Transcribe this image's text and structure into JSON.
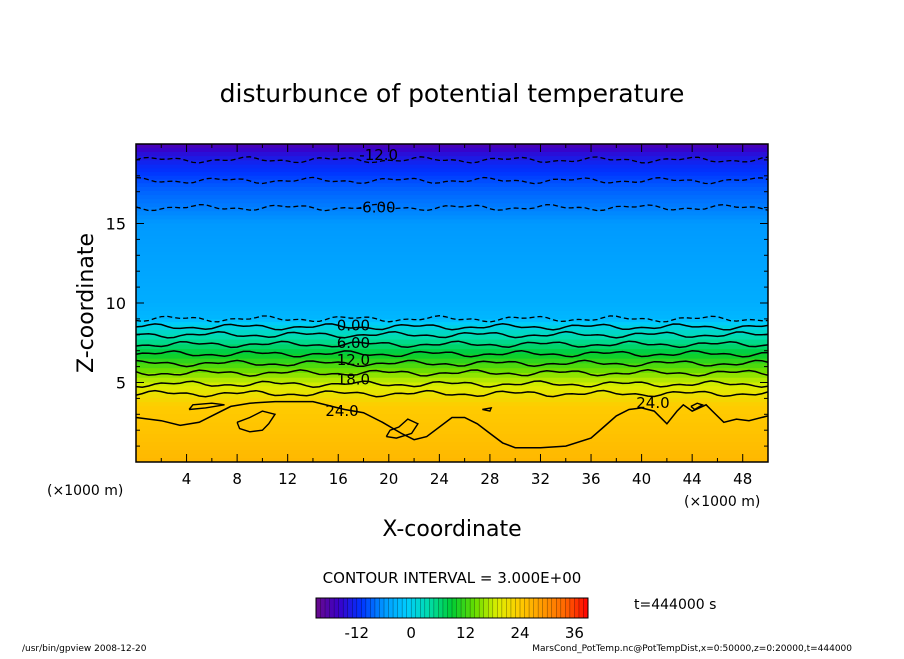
{
  "chart_data": {
    "type": "contour",
    "title": "disturbunce of potential temperature",
    "xlabel": "X-coordinate",
    "ylabel": "Z-coordinate",
    "x_unit_left": "(×1000 m)",
    "x_unit_right": "(×1000 m)",
    "xlim": [
      0,
      50
    ],
    "ylim": [
      0,
      20
    ],
    "x_ticks": [
      4,
      8,
      12,
      16,
      20,
      24,
      28,
      32,
      36,
      40,
      44,
      48
    ],
    "y_ticks": [
      5,
      10,
      15
    ],
    "contour_interval_text": "CONTOUR INTERVAL = 3.000E+00",
    "time_text": "t=444000 s",
    "colorbar": {
      "range": [
        -21,
        39
      ],
      "ticks": [
        -12,
        0,
        12,
        24,
        36
      ],
      "colors": [
        "#6a0a8a",
        "#3a00c8",
        "#0033ff",
        "#0099ff",
        "#00ccff",
        "#00ddaa",
        "#00cc33",
        "#66dd00",
        "#ddee00",
        "#ffcc00",
        "#ff9900",
        "#ff6600",
        "#ff0000"
      ]
    },
    "contour_labels": [
      {
        "text": "-12.0",
        "x": 19.2,
        "z": 19.3
      },
      {
        "text": "-6.00",
        "x": 19.0,
        "z": 16.0
      },
      {
        "text": "0.00",
        "x": 17.2,
        "z": 8.6
      },
      {
        "text": "6.00",
        "x": 17.2,
        "z": 7.5
      },
      {
        "text": "12.0",
        "x": 17.2,
        "z": 6.4
      },
      {
        "text": "18.0",
        "x": 17.2,
        "z": 5.2
      },
      {
        "text": "24.0",
        "x": 16.3,
        "z": 3.2
      },
      {
        "text": "24.0",
        "x": 40.9,
        "z": 3.7
      }
    ],
    "field_levels": [
      {
        "z": 20.0,
        "value": -18
      },
      {
        "z": 19.5,
        "value": -15
      },
      {
        "z": 18.7,
        "value": -12
      },
      {
        "z": 17.3,
        "value": -9
      },
      {
        "z": 15.0,
        "value": -6
      },
      {
        "z": 12.5,
        "value": -5
      },
      {
        "z": 10.0,
        "value": -4
      },
      {
        "z": 9.0,
        "value": -3
      },
      {
        "z": 8.6,
        "value": 0
      },
      {
        "z": 8.0,
        "value": 3
      },
      {
        "z": 7.4,
        "value": 6
      },
      {
        "z": 6.8,
        "value": 9
      },
      {
        "z": 6.2,
        "value": 12
      },
      {
        "z": 5.6,
        "value": 15
      },
      {
        "z": 5.0,
        "value": 18
      },
      {
        "z": 4.3,
        "value": 21
      },
      {
        "z": 3.5,
        "value": 24
      },
      {
        "z": 0.0,
        "value": 26
      }
    ],
    "contours": [
      {
        "value": -12,
        "dashed": true,
        "z": 19.0
      },
      {
        "value": -9,
        "dashed": true,
        "z": 17.7
      },
      {
        "value": -6,
        "dashed": true,
        "z": 16.0
      },
      {
        "value": -3,
        "dashed": true,
        "z": 9.0
      },
      {
        "value": 0,
        "dashed": false,
        "z": 8.5
      },
      {
        "value": 3,
        "dashed": false,
        "z": 8.0
      },
      {
        "value": 6,
        "dashed": false,
        "z": 7.4
      },
      {
        "value": 9,
        "dashed": false,
        "z": 6.8
      },
      {
        "value": 12,
        "dashed": false,
        "z": 6.2
      },
      {
        "value": 15,
        "dashed": false,
        "z": 5.6
      },
      {
        "value": 18,
        "dashed": false,
        "z": 4.9
      },
      {
        "value": 21,
        "dashed": false,
        "z": 4.3
      }
    ],
    "contour_24_boundary": [
      [
        0,
        2.8
      ],
      [
        2,
        2.6
      ],
      [
        3.5,
        2.3
      ],
      [
        5,
        2.5
      ],
      [
        6,
        2.9
      ],
      [
        7.5,
        3.5
      ],
      [
        9,
        3.7
      ],
      [
        11,
        3.8
      ],
      [
        14,
        3.8
      ],
      [
        15.5,
        3.5
      ],
      [
        16.5,
        3.3
      ],
      [
        18,
        3.1
      ],
      [
        19.5,
        2.5
      ],
      [
        21,
        1.8
      ],
      [
        22,
        1.4
      ],
      [
        23,
        1.6
      ],
      [
        25,
        2.8
      ],
      [
        26,
        2.8
      ],
      [
        27,
        2.4
      ],
      [
        28,
        1.8
      ],
      [
        29,
        1.2
      ],
      [
        30,
        0.9
      ],
      [
        32,
        0.9
      ],
      [
        34,
        1.0
      ],
      [
        36,
        1.5
      ],
      [
        37,
        2.2
      ],
      [
        38,
        2.9
      ],
      [
        39,
        3.3
      ],
      [
        40,
        3.4
      ],
      [
        41,
        3.2
      ],
      [
        42,
        2.4
      ],
      [
        42.8,
        3.2
      ],
      [
        43.3,
        3.6
      ],
      [
        44,
        3.2
      ],
      [
        45.1,
        3.6
      ],
      [
        45.6,
        3.2
      ],
      [
        46.5,
        2.5
      ],
      [
        47.5,
        2.7
      ],
      [
        48.5,
        2.6
      ],
      [
        50,
        2.9
      ]
    ],
    "small_24_contours": [
      [
        [
          4.2,
          3.3
        ],
        [
          5.5,
          3.4
        ],
        [
          7,
          3.6
        ],
        [
          6,
          3.7
        ],
        [
          4.5,
          3.6
        ],
        [
          4.2,
          3.3
        ]
      ],
      [
        [
          8,
          2.5
        ],
        [
          9,
          2.8
        ],
        [
          10,
          3.2
        ],
        [
          11,
          3.0
        ],
        [
          10.5,
          2.4
        ],
        [
          10,
          2.0
        ],
        [
          9,
          1.9
        ],
        [
          8.2,
          2.1
        ],
        [
          8,
          2.5
        ]
      ],
      [
        [
          19.8,
          1.6
        ],
        [
          20.6,
          1.5
        ],
        [
          21.8,
          1.8
        ],
        [
          22.3,
          2.4
        ],
        [
          21.5,
          2.7
        ],
        [
          20.8,
          2.2
        ],
        [
          20.1,
          2.0
        ],
        [
          19.8,
          1.6
        ]
      ],
      [
        [
          27.4,
          3.3
        ],
        [
          28.0,
          3.2
        ],
        [
          28.1,
          3.4
        ],
        [
          27.4,
          3.3
        ]
      ],
      [
        [
          43.9,
          3.5
        ],
        [
          44.4,
          3.7
        ],
        [
          44.8,
          3.6
        ],
        [
          44.2,
          3.3
        ],
        [
          43.9,
          3.5
        ]
      ]
    ],
    "footer_left": "/usr/bin/gpview   2008-12-20",
    "footer_right": "MarsCond_PotTemp.nc@PotTempDist,x=0:50000,z=0:20000,t=444000"
  }
}
